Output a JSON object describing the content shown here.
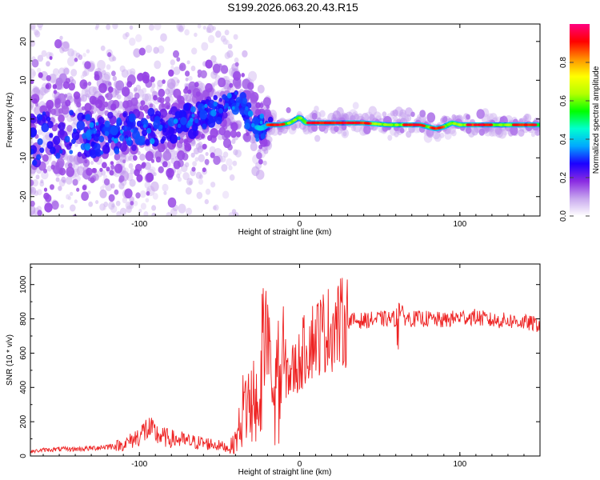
{
  "title": "S199.2026.063.20.43.R15",
  "chart_data": [
    {
      "type": "heatmap",
      "panel": "spectrogram",
      "xlabel": "Height of straight line (km)",
      "ylabel": "Frequency (Hz)",
      "xlim": [
        -168,
        150
      ],
      "ylim": [
        -25,
        24.5
      ],
      "xticks": [
        -100,
        0,
        100
      ],
      "yticks": [
        -20,
        -10,
        0,
        10,
        20
      ],
      "grid": false,
      "ridge": {
        "x": [
          -165,
          -140,
          -120,
          -100,
          -80,
          -65,
          -55,
          -45,
          -40,
          -35,
          -30,
          -27,
          -24,
          -20,
          -12,
          -6,
          -2,
          0,
          4,
          10,
          20,
          40,
          55,
          65,
          75,
          80,
          85,
          90,
          95,
          100,
          110,
          120,
          130,
          140,
          150
        ],
        "y": [
          -5,
          -4,
          -4,
          -3,
          -2,
          0,
          2,
          4,
          5,
          3,
          0,
          -2,
          -2.5,
          -1.5,
          -1.5,
          -1,
          0,
          0.5,
          -1,
          -1,
          -1,
          -1,
          -1.5,
          -1.5,
          -1.5,
          -2,
          -2.5,
          -2,
          -1,
          -1.5,
          -1.5,
          -1.5,
          -1.5,
          -1.5,
          -1.5
        ]
      },
      "colorbar": {
        "label": "Normalized spectral amplitude",
        "ticks": [
          0.0,
          0.2,
          0.4,
          0.6,
          0.8
        ],
        "range": [
          0,
          1
        ],
        "colormap": [
          "#ffffff",
          "#c8a8ee",
          "#8a2be2",
          "#1c00ff",
          "#00a8ff",
          "#00ffd0",
          "#00ff00",
          "#b4ff00",
          "#ffff00",
          "#ff9000",
          "#ff0000",
          "#ff0080"
        ]
      }
    },
    {
      "type": "line",
      "panel": "snr",
      "xlabel": "Height of straight line (km)",
      "ylabel": "SNR (10 * v/v)",
      "xlim": [
        -168,
        150
      ],
      "ylim": [
        0,
        1120
      ],
      "xticks": [
        -100,
        0,
        100
      ],
      "yticks": [
        0,
        200,
        400,
        600,
        800,
        1000
      ],
      "grid": false,
      "series": [
        {
          "name": "SNR",
          "color": "#ee2222",
          "x": [
            -168,
            -160,
            -150,
            -140,
            -130,
            -120,
            -110,
            -105,
            -100,
            -95,
            -90,
            -85,
            -80,
            -75,
            -70,
            -65,
            -60,
            -55,
            -50,
            -45,
            -42,
            -40,
            -38,
            -36,
            -34,
            -32,
            -30,
            -28,
            -26,
            -24,
            -22,
            -20,
            -18,
            -16,
            -14,
            -12,
            -10,
            -8,
            -6,
            -4,
            -2,
            0,
            2,
            5,
            8,
            12,
            16,
            20,
            25,
            30,
            40,
            50,
            60,
            62,
            65,
            70,
            80,
            90,
            100,
            110,
            120,
            130,
            140,
            150
          ],
          "y": [
            25,
            35,
            40,
            40,
            45,
            55,
            65,
            90,
            120,
            160,
            130,
            110,
            100,
            95,
            85,
            80,
            75,
            70,
            60,
            50,
            60,
            90,
            150,
            250,
            300,
            320,
            340,
            420,
            500,
            560,
            600,
            500,
            450,
            380,
            420,
            450,
            520,
            500,
            480,
            500,
            520,
            550,
            600,
            650,
            680,
            710,
            730,
            750,
            770,
            790,
            790,
            800,
            800,
            870,
            810,
            800,
            800,
            790,
            810,
            810,
            790,
            790,
            780,
            765
          ]
        }
      ]
    }
  ]
}
